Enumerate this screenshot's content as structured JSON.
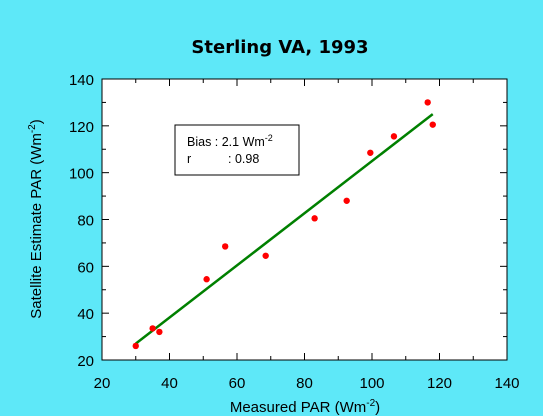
{
  "chart_data": {
    "type": "scatter",
    "title": "Sterling  VA,  1993",
    "xlabel": {
      "text": "Measured PAR (Wm",
      "sup": "-2",
      "close": ")"
    },
    "ylabel": {
      "text": "Satellite Estimate PAR (Wm",
      "sup": "-2",
      "close": ")"
    },
    "xlim": [
      20,
      140
    ],
    "ylim": [
      20,
      140
    ],
    "xticks": [
      20,
      40,
      60,
      80,
      100,
      120,
      140
    ],
    "yticks": [
      20,
      40,
      60,
      80,
      100,
      120,
      140
    ],
    "grid": false,
    "series": [
      {
        "type": "scatter",
        "color": "#ff0000",
        "x": [
          30,
          35,
          37,
          51,
          56.5,
          68.5,
          83,
          92.5,
          99.5,
          106.5,
          116.5,
          118
        ],
        "y": [
          26,
          33.5,
          32,
          54.5,
          68.5,
          64.5,
          80.5,
          88,
          108.5,
          115.5,
          130,
          120.5
        ]
      },
      {
        "type": "line",
        "color": "#008000",
        "x": [
          30,
          118
        ],
        "y": [
          27,
          125
        ]
      }
    ],
    "annotation": {
      "bias_label": "Bias : 2.1 Wm",
      "bias_sup": "-2",
      "r_label": "r",
      "r_value": ":  0.98"
    }
  }
}
